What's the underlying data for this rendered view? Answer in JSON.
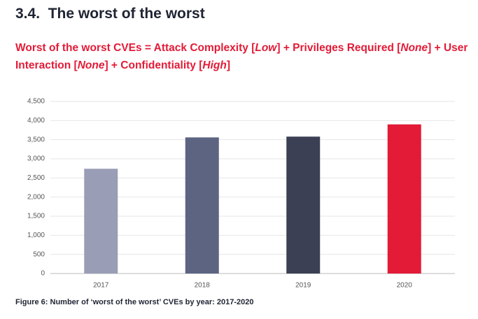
{
  "heading": "3.4.  The worst of the worst",
  "subtitle": [
    {
      "text": "Worst of the worst CVEs = Attack Complexity [",
      "italic": false
    },
    {
      "text": "Low",
      "italic": true
    },
    {
      "text": "] + Privileges Required [",
      "italic": false
    },
    {
      "text": "None",
      "italic": true
    },
    {
      "text": "] + User Interaction [",
      "italic": false
    },
    {
      "text": "None",
      "italic": true
    },
    {
      "text": "] + Confidentiality [",
      "italic": false
    },
    {
      "text": "High",
      "italic": true
    },
    {
      "text": "]",
      "italic": false
    }
  ],
  "chart_data": {
    "type": "bar",
    "categories": [
      "2017",
      "2018",
      "2019",
      "2020"
    ],
    "values": [
      2740,
      3560,
      3580,
      3900
    ],
    "colors": [
      "#9a9db6",
      "#5c6482",
      "#3b4054",
      "#e31b37"
    ],
    "ylim": [
      0,
      4500
    ],
    "yticks": [
      0,
      500,
      {
        "value": 1000,
        "label": "1,000"
      },
      {
        "value": 1500,
        "label": "1,500"
      },
      {
        "value": 2000,
        "label": "2,000"
      },
      {
        "value": 2500,
        "label": "2,500"
      },
      {
        "value": 3000,
        "label": "3,000"
      },
      {
        "value": 3500,
        "label": "3,500"
      },
      {
        "value": 4000,
        "label": "4,000"
      },
      {
        "value": 4500,
        "label": "4,500"
      }
    ],
    "grid": true
  },
  "caption": "Figure 6: Number of ‘worst of the worst’ CVEs by year: 2017-2020"
}
